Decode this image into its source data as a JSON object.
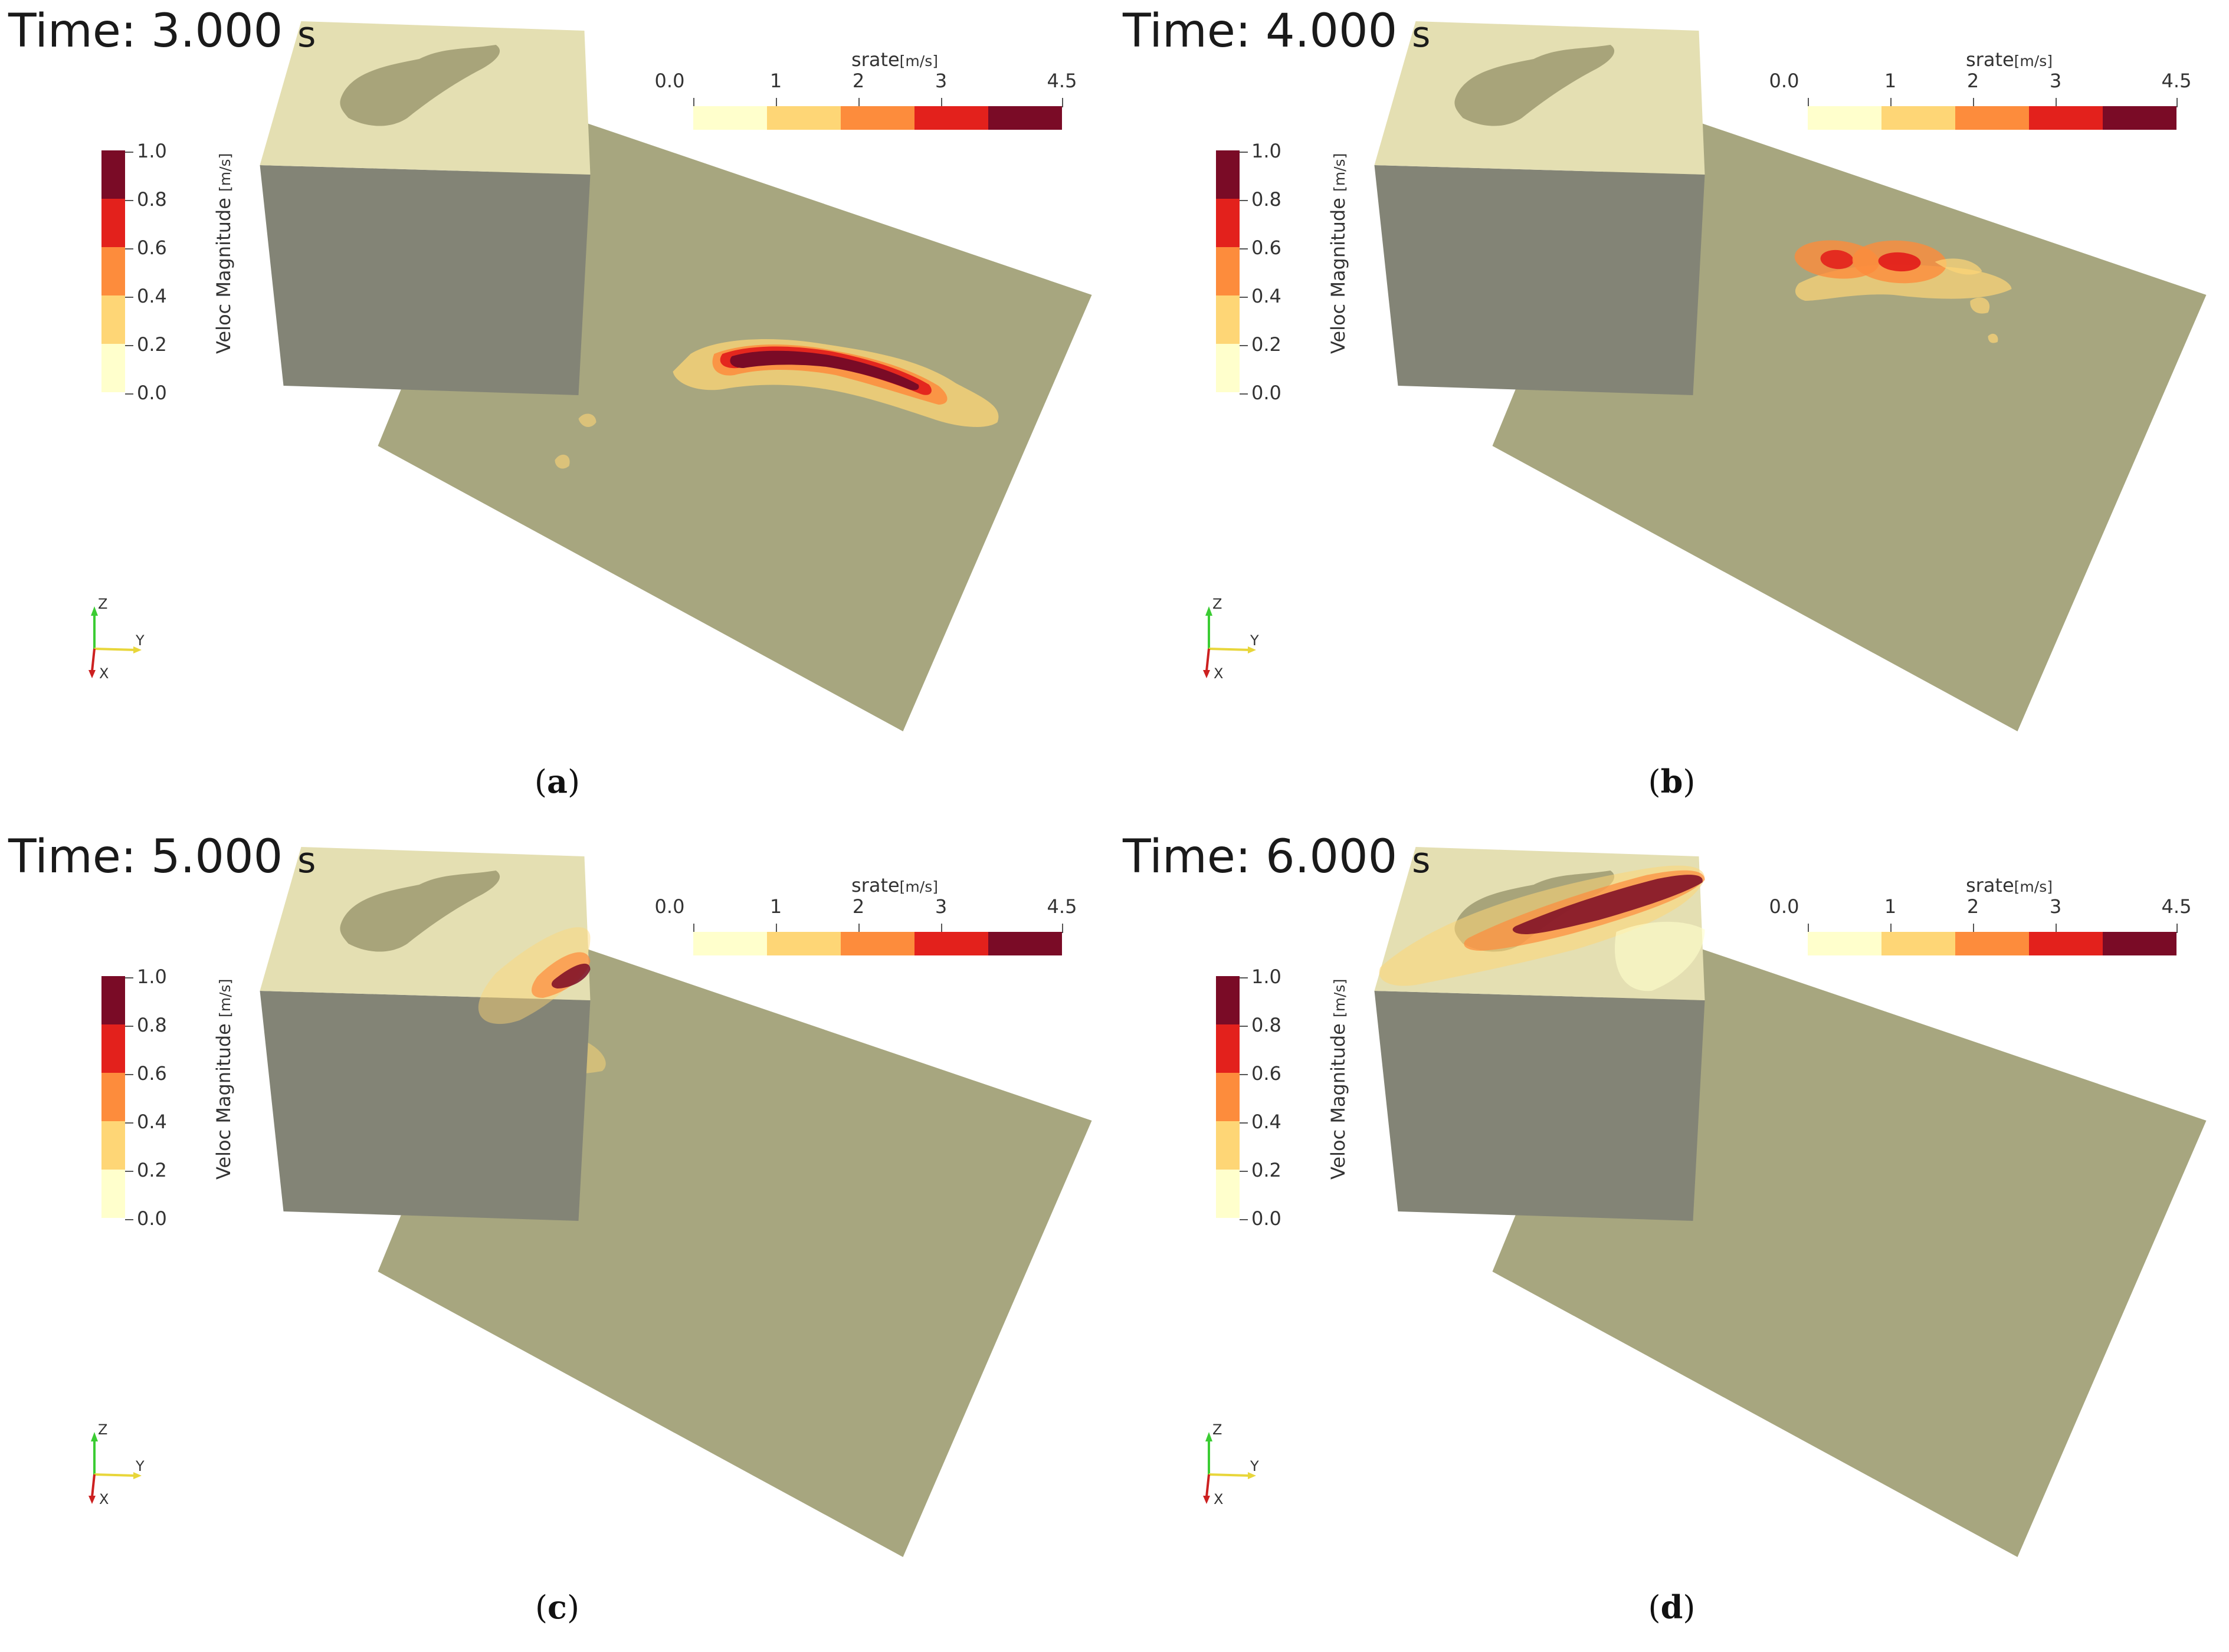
{
  "panels": [
    {
      "time_label": "Time: 3.000",
      "time_unit": "s",
      "caption_label": "a",
      "rupture": "a"
    },
    {
      "time_label": "Time: 4.000",
      "time_unit": "s",
      "caption_label": "b",
      "rupture": "b"
    },
    {
      "time_label": "Time: 5.000",
      "time_unit": "s",
      "caption_label": "c",
      "rupture": "c"
    },
    {
      "time_label": "Time: 6.000",
      "time_unit": "s",
      "caption_label": "d",
      "rupture": "d"
    }
  ],
  "veloc_legend": {
    "title": "Veloc Magnitude",
    "unit": "[m/s]",
    "ticks": [
      "1.0",
      "0.8",
      "0.6",
      "0.4",
      "0.2",
      "0.0"
    ],
    "colors": [
      "#7a0b26",
      "#e3211c",
      "#fd8c3c",
      "#fed676",
      "#ffffcc"
    ]
  },
  "srate_legend": {
    "title": "srate",
    "unit": "[m/s]",
    "ticks": [
      "0.0",
      "1",
      "2",
      "3",
      "4.5"
    ],
    "colors": [
      "#ffffcc",
      "#fed676",
      "#fd8c3c",
      "#e3211c",
      "#7a0b26"
    ]
  },
  "orientation_axes": {
    "z": "Z",
    "y": "Y",
    "x": "X"
  },
  "scene_colors": {
    "fault_plane": "#a7a67f",
    "block_top": "#e4dfb2",
    "block_side": "#838476",
    "island": "#a8a47a"
  }
}
